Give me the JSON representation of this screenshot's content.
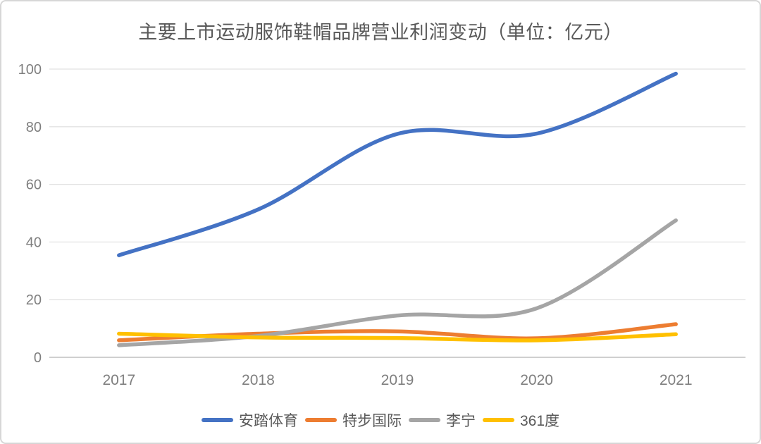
{
  "title": "主要上市运动服饰鞋帽品牌营业利润变动（单位：亿元）",
  "chart_data": {
    "type": "line",
    "title": "主要上市运动服饰鞋帽品牌营业利润变动",
    "unit_label": "亿元",
    "x": [
      "2017",
      "2018",
      "2019",
      "2020",
      "2021"
    ],
    "series": [
      {
        "key": "anta-sports",
        "name": "安踏体育",
        "color": "#4472C4",
        "values": [
          35.4,
          51.3,
          77.5,
          77.6,
          98.4
        ]
      },
      {
        "key": "xtep",
        "name": "特步国际",
        "color": "#ED7D31",
        "values": [
          5.9,
          8.2,
          9.0,
          6.6,
          11.5
        ]
      },
      {
        "key": "li-ning",
        "name": "李宁",
        "color": "#A5A5A5",
        "values": [
          4.2,
          7.4,
          14.5,
          17.0,
          47.5
        ]
      },
      {
        "key": "361-degrees",
        "name": "361度",
        "color": "#FFC000",
        "values": [
          8.2,
          6.9,
          6.7,
          5.9,
          8.0
        ]
      }
    ],
    "ylim": [
      0,
      100
    ],
    "yticks": [
      "0",
      "20",
      "40",
      "60",
      "80",
      "100"
    ],
    "xlabel": "",
    "ylabel": "",
    "grid": true,
    "smooth": true,
    "legend_position": "bottom"
  },
  "colors": {
    "title_text": "#595959",
    "axis_text": "#7F7F7F",
    "legend_text": "#595959",
    "gridline": "#E2E2E2",
    "axis_line": "#BFBFBF",
    "frame_border": "#D7D7D7",
    "background": "#FFFFFF"
  }
}
